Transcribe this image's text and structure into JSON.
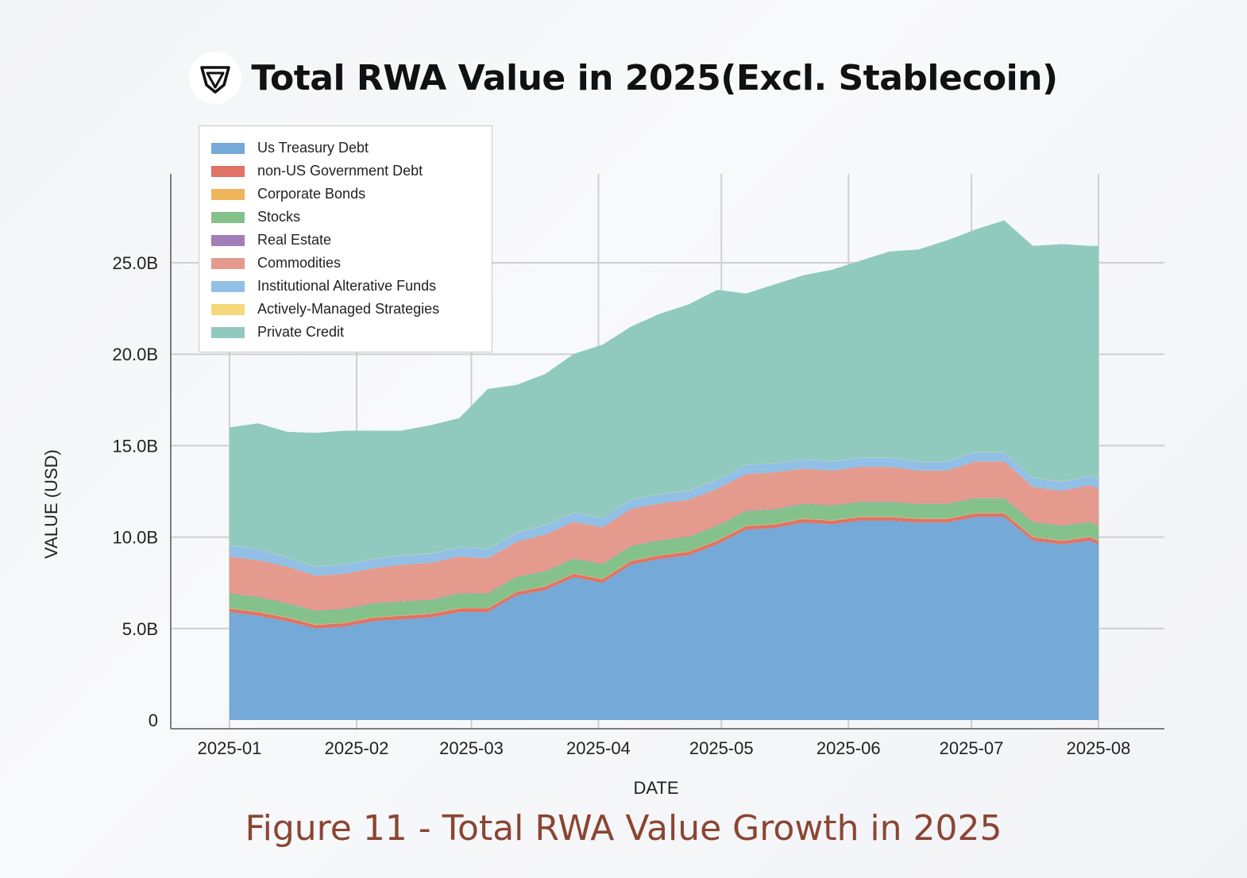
{
  "header": {
    "title": "Total RWA Value in 2025(Excl. Stablecoin)",
    "logo": "shield-logo"
  },
  "caption": "Figure 11 - Total RWA Value Growth in 2025",
  "chart_data": {
    "type": "area",
    "stacked": true,
    "xlabel": "DATE",
    "ylabel": "VALUE (USD)",
    "ylim": [
      0,
      30
    ],
    "y_unit": "B",
    "y_ticks": [
      0,
      5,
      10,
      15,
      20,
      25
    ],
    "y_tick_labels": [
      "0",
      "5.0B",
      "10.0B",
      "15.0B",
      "20.0B",
      "25.0B"
    ],
    "x_ticks": [
      "2025-01-01",
      "2025-02-01",
      "2025-03-01",
      "2025-04-01",
      "2025-05-01",
      "2025-06-01",
      "2025-07-01",
      "2025-08-01"
    ],
    "x_tick_labels": [
      "2025-01",
      "2025-02",
      "2025-03",
      "2025-04",
      "2025-05",
      "2025-06",
      "2025-07",
      "2025-08"
    ],
    "grid": true,
    "legend_position": "top-left",
    "x": [
      "2025-01-01",
      "2025-01-08",
      "2025-01-15",
      "2025-01-22",
      "2025-01-29",
      "2025-02-05",
      "2025-02-12",
      "2025-02-19",
      "2025-02-26",
      "2025-03-05",
      "2025-03-12",
      "2025-03-19",
      "2025-03-26",
      "2025-04-02",
      "2025-04-09",
      "2025-04-16",
      "2025-04-23",
      "2025-04-30",
      "2025-05-07",
      "2025-05-14",
      "2025-05-21",
      "2025-05-28",
      "2025-06-04",
      "2025-06-11",
      "2025-06-18",
      "2025-06-25",
      "2025-07-02",
      "2025-07-09",
      "2025-07-16",
      "2025-07-23",
      "2025-07-30",
      "2025-08-01"
    ],
    "series": [
      {
        "name": "Us Treasury Debt",
        "color": "#74a9d8",
        "values": [
          5.9,
          5.7,
          5.4,
          5.0,
          5.1,
          5.4,
          5.5,
          5.6,
          5.9,
          5.9,
          6.8,
          7.1,
          7.8,
          7.5,
          8.5,
          8.8,
          9.0,
          9.6,
          10.4,
          10.5,
          10.8,
          10.7,
          10.9,
          10.9,
          10.8,
          10.8,
          11.1,
          11.1,
          9.8,
          9.6,
          9.8,
          9.6
        ]
      },
      {
        "name": "non-US Government Debt",
        "color": "#e07366",
        "values": [
          0.2,
          0.2,
          0.2,
          0.2,
          0.2,
          0.2,
          0.2,
          0.2,
          0.2,
          0.2,
          0.2,
          0.2,
          0.2,
          0.2,
          0.2,
          0.2,
          0.2,
          0.2,
          0.2,
          0.2,
          0.2,
          0.2,
          0.2,
          0.2,
          0.2,
          0.2,
          0.2,
          0.2,
          0.2,
          0.2,
          0.2,
          0.2
        ]
      },
      {
        "name": "Corporate Bonds",
        "color": "#f0b45a",
        "values": [
          0.02,
          0.02,
          0.02,
          0.02,
          0.02,
          0.02,
          0.02,
          0.02,
          0.02,
          0.02,
          0.02,
          0.02,
          0.02,
          0.02,
          0.02,
          0.02,
          0.02,
          0.02,
          0.02,
          0.02,
          0.02,
          0.02,
          0.02,
          0.02,
          0.02,
          0.02,
          0.02,
          0.02,
          0.02,
          0.02,
          0.02,
          0.02
        ]
      },
      {
        "name": "Stocks",
        "color": "#85c18a",
        "values": [
          0.8,
          0.8,
          0.75,
          0.75,
          0.75,
          0.75,
          0.75,
          0.75,
          0.8,
          0.8,
          0.8,
          0.8,
          0.8,
          0.8,
          0.8,
          0.8,
          0.8,
          0.8,
          0.8,
          0.8,
          0.8,
          0.8,
          0.8,
          0.8,
          0.8,
          0.8,
          0.8,
          0.8,
          0.8,
          0.8,
          0.8,
          0.8
        ]
      },
      {
        "name": "Real Estate",
        "color": "#a17eb8",
        "values": [
          0.02,
          0.02,
          0.02,
          0.02,
          0.02,
          0.02,
          0.02,
          0.02,
          0.02,
          0.02,
          0.02,
          0.02,
          0.02,
          0.02,
          0.02,
          0.02,
          0.02,
          0.02,
          0.02,
          0.02,
          0.02,
          0.02,
          0.02,
          0.02,
          0.02,
          0.02,
          0.02,
          0.02,
          0.02,
          0.02,
          0.02,
          0.02
        ]
      },
      {
        "name": "Commodities",
        "color": "#e49a8d",
        "values": [
          2.0,
          2.0,
          2.0,
          1.9,
          1.9,
          1.9,
          2.0,
          2.0,
          2.0,
          1.9,
          1.9,
          2.0,
          2.0,
          2.0,
          2.0,
          2.0,
          2.0,
          2.0,
          2.0,
          2.0,
          1.9,
          1.9,
          1.9,
          1.9,
          1.8,
          1.8,
          2.0,
          2.0,
          1.9,
          1.9,
          2.0,
          2.0
        ]
      },
      {
        "name": "Institutional Alterative Funds",
        "color": "#92bfe5",
        "values": [
          0.6,
          0.6,
          0.5,
          0.5,
          0.5,
          0.5,
          0.5,
          0.5,
          0.5,
          0.5,
          0.5,
          0.5,
          0.5,
          0.5,
          0.5,
          0.5,
          0.5,
          0.5,
          0.5,
          0.5,
          0.5,
          0.5,
          0.5,
          0.5,
          0.5,
          0.5,
          0.5,
          0.5,
          0.5,
          0.5,
          0.5,
          0.5
        ]
      },
      {
        "name": "Actively-Managed Strategies",
        "color": "#f5d87a",
        "values": [
          0.01,
          0.01,
          0.01,
          0.01,
          0.01,
          0.01,
          0.01,
          0.01,
          0.01,
          0.01,
          0.01,
          0.01,
          0.01,
          0.01,
          0.01,
          0.01,
          0.01,
          0.01,
          0.01,
          0.01,
          0.01,
          0.01,
          0.01,
          0.01,
          0.01,
          0.01,
          0.01,
          0.01,
          0.01,
          0.01,
          0.01,
          0.01
        ]
      },
      {
        "name": "Private Credit",
        "color": "#90cabe",
        "values": [
          6.45,
          6.87,
          6.86,
          7.3,
          7.32,
          7.02,
          6.82,
          7.02,
          7.05,
          8.75,
          8.07,
          8.27,
          8.67,
          9.47,
          9.47,
          9.87,
          10.17,
          10.37,
          9.37,
          9.77,
          10.07,
          10.47,
          10.77,
          11.27,
          11.57,
          12.07,
          12.17,
          12.67,
          12.67,
          12.97,
          12.57,
          12.77
        ]
      }
    ]
  }
}
